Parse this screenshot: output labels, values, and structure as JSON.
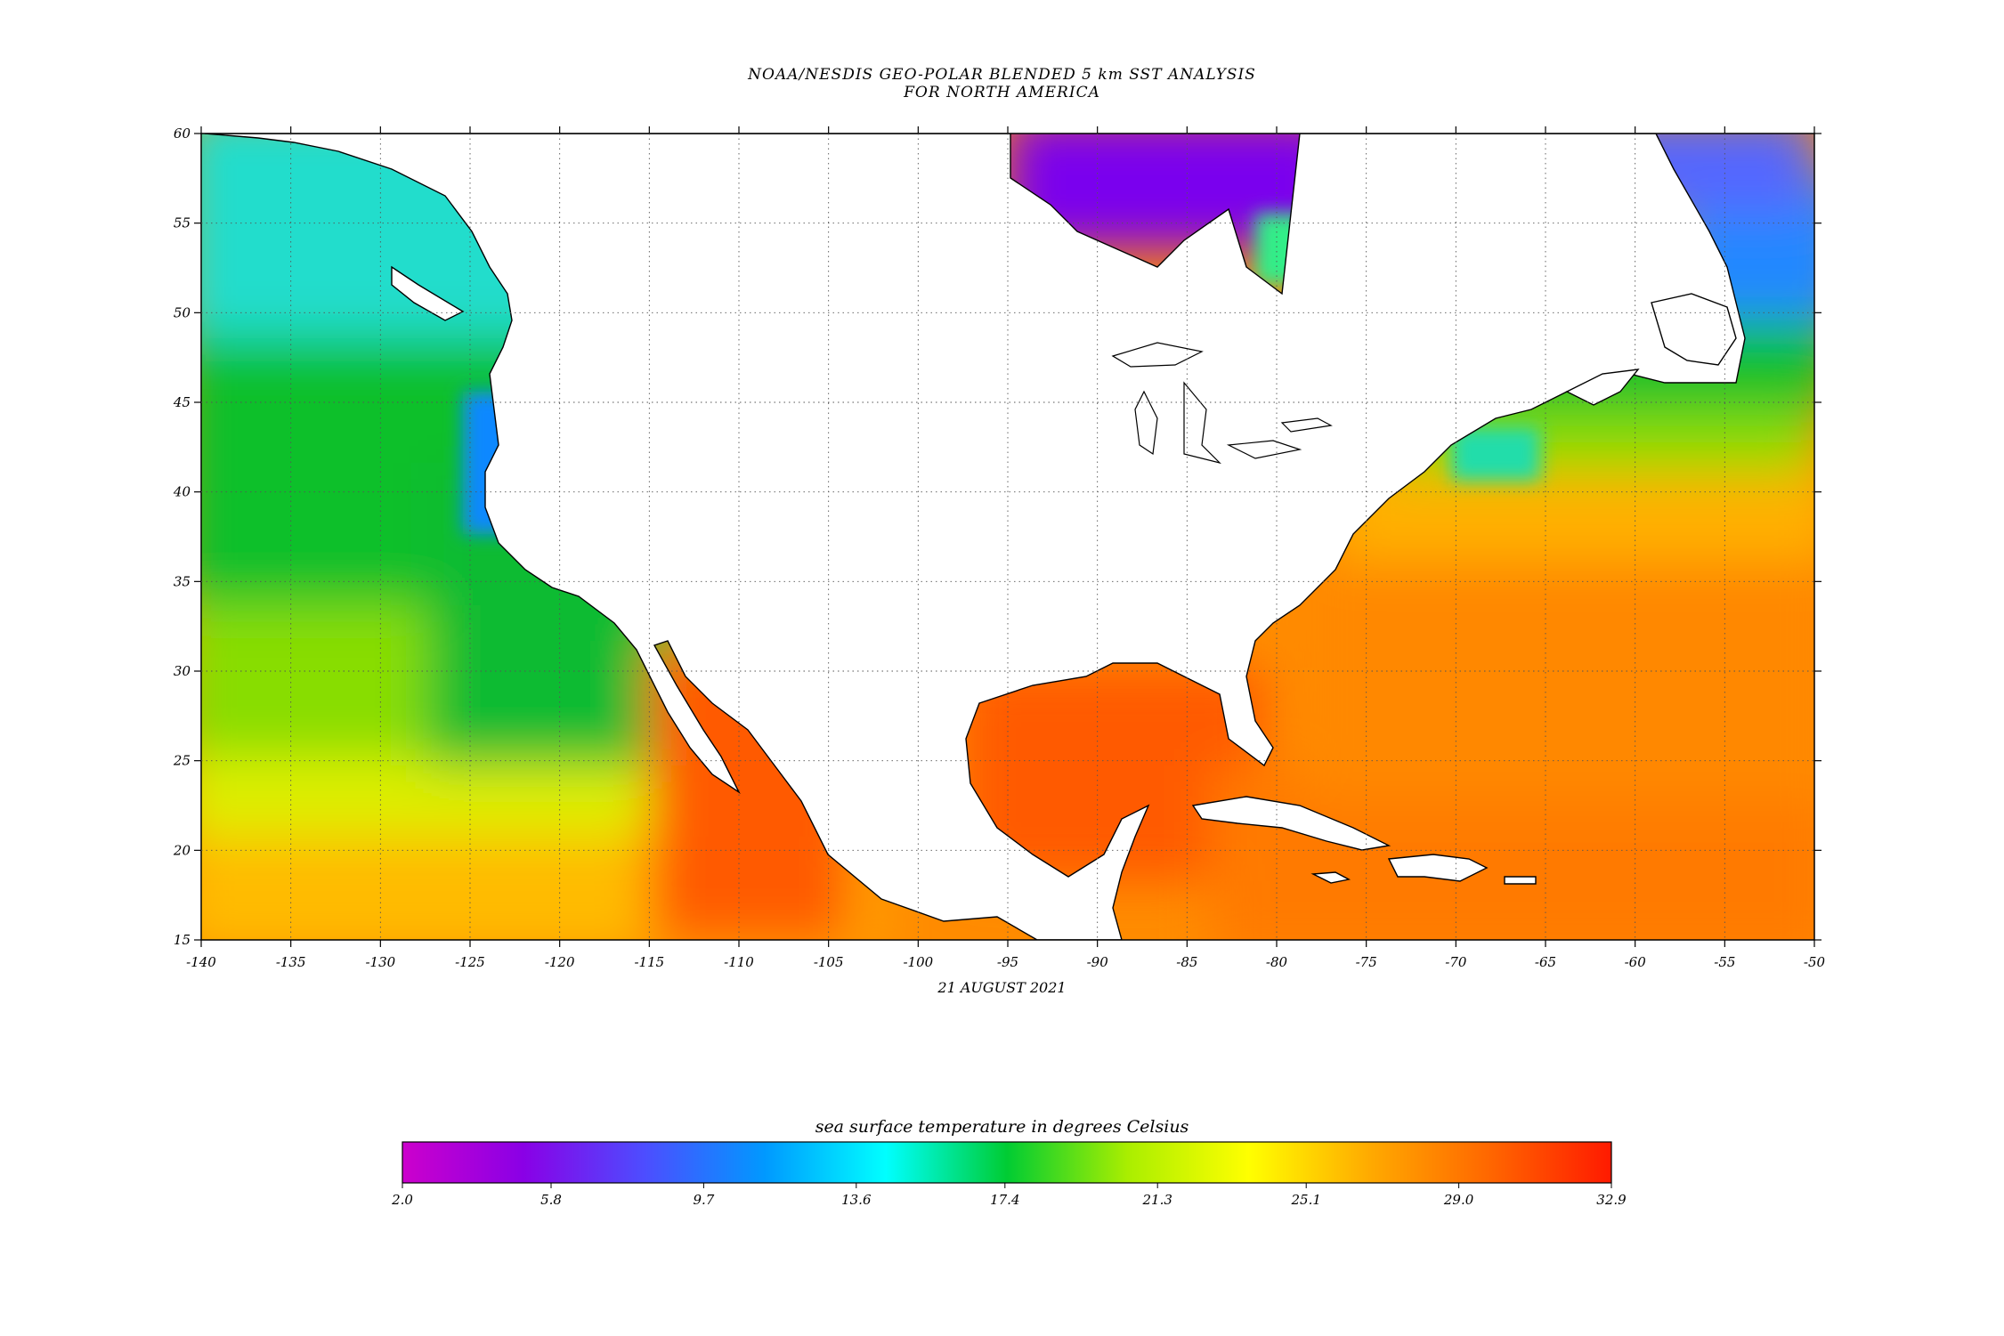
{
  "title_line1": "NOAA/NESDIS GEO-POLAR BLENDED 5 km SST ANALYSIS",
  "title_line2": "FOR NORTH AMERICA",
  "date": "21 AUGUST 2021",
  "map": {
    "lon_range": [
      -140,
      -50
    ],
    "lat_range": [
      15,
      60
    ],
    "lon_ticks": [
      -140,
      -135,
      -130,
      -125,
      -120,
      -115,
      -110,
      -105,
      -100,
      -95,
      -90,
      -85,
      -80,
      -75,
      -70,
      -65,
      -60,
      -55,
      -50
    ],
    "lat_ticks": [
      15,
      20,
      25,
      30,
      35,
      40,
      45,
      50,
      55,
      60
    ],
    "lon_tick_labels": [
      "-140",
      "-135",
      "-130",
      "-125",
      "-120",
      "-115",
      "-110",
      "-105",
      "-100",
      "-95",
      "-90",
      "-85",
      "-80",
      "-75",
      "-70",
      "-65",
      "-60",
      "-55",
      "-50"
    ],
    "lat_tick_labels": [
      "15",
      "20",
      "25",
      "30",
      "35",
      "40",
      "45",
      "50",
      "55",
      "60"
    ],
    "grid": "dotted",
    "land_color": "#ffffff"
  },
  "colorbar": {
    "title": "sea surface temperature in degrees Celsius",
    "range": [
      2.0,
      32.9
    ],
    "tick_labels": [
      "2.0",
      "5.8",
      "9.7",
      "13.6",
      "17.4",
      "21.3",
      "25.1",
      "29.0",
      "32.9"
    ],
    "colors": [
      "#cc00cc",
      "#8a00e6",
      "#4d4dff",
      "#0099ff",
      "#00ffff",
      "#00cc33",
      "#aaee00",
      "#ffff00",
      "#ffaa00",
      "#ff6600",
      "#ff1a00"
    ]
  }
}
